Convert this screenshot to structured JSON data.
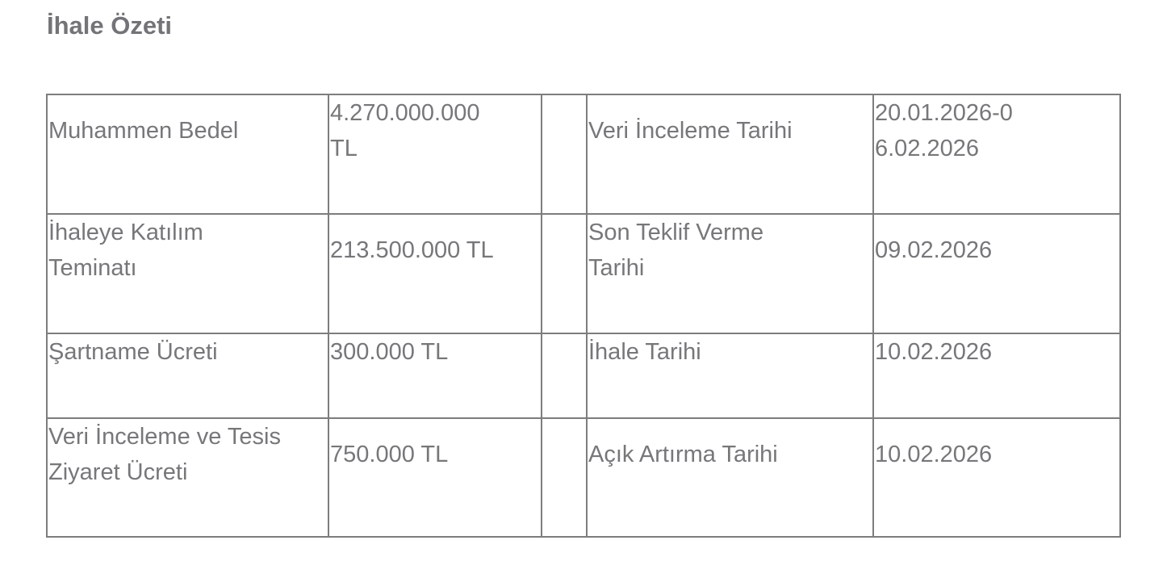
{
  "title": "İhale Özeti",
  "rows": [
    {
      "label1": "Muhammen Bedel",
      "value1": "4.270.000.000 TL",
      "label2": "Veri İnceleme Tarihi",
      "value2": "20.01.2026-06.02.2026"
    },
    {
      "label1": "İhaleye Katılım Teminatı",
      "value1": "213.500.000 TL",
      "label2": "Son Teklif Verme Tarihi",
      "value2": "09.02.2026"
    },
    {
      "label1": "Şartname Ücreti",
      "value1": "300.000 TL",
      "label2": "İhale Tarihi",
      "value2": "10.02.2026"
    },
    {
      "label1": "Veri İnceleme ve Tesis Ziyaret Ücreti",
      "value1": "750.000 TL",
      "label2": "Açık Artırma Tarihi",
      "value2": "10.02.2026"
    }
  ]
}
